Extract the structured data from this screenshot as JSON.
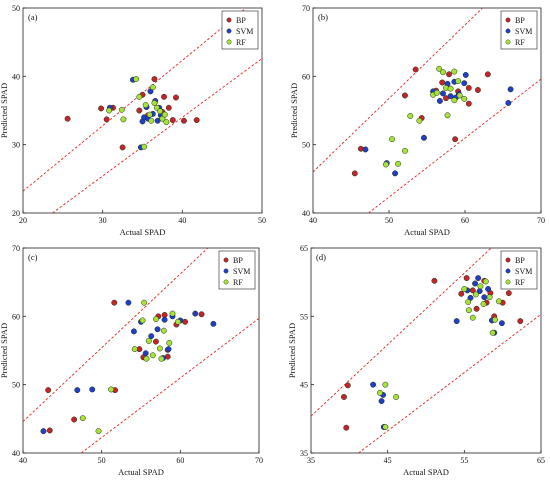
{
  "chart_data": [
    {
      "type": "scatter",
      "panel_label": "(a)",
      "xlabel": "Actual SPAD",
      "ylabel": "Predicted SPAD",
      "xlim": [
        20,
        50
      ],
      "ylim": [
        20,
        50
      ],
      "xticks": [
        20,
        30,
        40,
        50
      ],
      "yticks": [
        20,
        30,
        40,
        50
      ],
      "bands": [
        [
          20,
          23.2,
          50,
          51.9
        ],
        [
          23.7,
          20,
          50,
          42.6
        ]
      ],
      "legend": {
        "position": "top-right",
        "entries": [
          "BP",
          "SVM",
          "RF"
        ]
      },
      "series": [
        {
          "name": "BP",
          "color": "#c0262c",
          "points": [
            [
              25.6,
              33.8
            ],
            [
              29.8,
              35.3
            ],
            [
              30.5,
              33.7
            ],
            [
              31.3,
              35.4
            ],
            [
              32.5,
              29.6
            ],
            [
              34.6,
              35.0
            ],
            [
              35.0,
              37.3
            ],
            [
              35.7,
              34.3
            ],
            [
              36.5,
              39.6
            ],
            [
              37.5,
              34.8
            ],
            [
              37.7,
              37.0
            ],
            [
              38.3,
              35.4
            ],
            [
              38.8,
              33.6
            ],
            [
              39.2,
              36.9
            ],
            [
              40.2,
              33.5
            ],
            [
              41.8,
              33.6
            ]
          ]
        },
        {
          "name": "SVM",
          "color": "#1f3fc9",
          "points": [
            [
              30.9,
              35.4
            ],
            [
              33.8,
              39.5
            ],
            [
              34.8,
              29.6
            ],
            [
              35.0,
              33.4
            ],
            [
              35.2,
              34.0
            ],
            [
              35.5,
              35.5
            ],
            [
              35.7,
              33.8
            ],
            [
              36.0,
              37.8
            ],
            [
              36.3,
              34.5
            ],
            [
              36.6,
              36.4
            ],
            [
              37.1,
              35.4
            ],
            [
              36.9,
              33.5
            ],
            [
              37.3,
              34.3
            ]
          ]
        },
        {
          "name": "RF",
          "color": "#a6e33a",
          "points": [
            [
              30.8,
              35.0
            ],
            [
              32.4,
              35.1
            ],
            [
              32.6,
              33.7
            ],
            [
              34.2,
              39.6
            ],
            [
              34.6,
              37.0
            ],
            [
              35.2,
              29.7
            ],
            [
              35.4,
              35.8
            ],
            [
              35.9,
              34.4
            ],
            [
              36.3,
              38.4
            ],
            [
              36.5,
              36.1
            ],
            [
              36.8,
              35.4
            ],
            [
              37.2,
              34.9
            ],
            [
              37.5,
              33.8
            ],
            [
              37.8,
              34.4
            ],
            [
              38.0,
              33.3
            ],
            [
              36.1,
              33.5
            ]
          ]
        }
      ]
    },
    {
      "type": "scatter",
      "panel_label": "(b)",
      "xlabel": "Actual SPAD",
      "ylabel": "Predicted SPAD",
      "xlim": [
        40,
        70
      ],
      "ylim": [
        40,
        70
      ],
      "xticks": [
        40,
        50,
        60,
        70
      ],
      "yticks": [
        40,
        50,
        60,
        70
      ],
      "bands": [
        [
          40,
          46.0,
          62.3,
          70
        ],
        [
          47.3,
          40,
          70,
          59.6
        ]
      ],
      "legend": {
        "position": "top-right",
        "entries": [
          "BP",
          "SVM",
          "RF"
        ]
      },
      "series": [
        {
          "name": "BP",
          "color": "#c0262c",
          "points": [
            [
              45.5,
              45.8
            ],
            [
              46.3,
              49.4
            ],
            [
              52.1,
              57.2
            ],
            [
              53.5,
              61.0
            ],
            [
              54.3,
              53.9
            ],
            [
              56.2,
              57.9
            ],
            [
              57.0,
              59.1
            ],
            [
              57.9,
              60.3
            ],
            [
              58.7,
              50.8
            ],
            [
              59.1,
              57.8
            ],
            [
              60.5,
              58.3
            ],
            [
              60.5,
              56.0
            ],
            [
              61.7,
              58.0
            ],
            [
              63.0,
              60.3
            ],
            [
              57.5,
              56.8
            ]
          ]
        },
        {
          "name": "SVM",
          "color": "#1f3fc9",
          "points": [
            [
              46.9,
              49.3
            ],
            [
              49.7,
              47.3
            ],
            [
              50.8,
              45.8
            ],
            [
              54.6,
              51.0
            ],
            [
              55.8,
              57.8
            ],
            [
              56.7,
              56.4
            ],
            [
              57.1,
              57.5
            ],
            [
              57.7,
              58.9
            ],
            [
              58.1,
              57.1
            ],
            [
              58.6,
              59.2
            ],
            [
              59.2,
              57.4
            ],
            [
              59.9,
              59.0
            ],
            [
              60.1,
              60.2
            ],
            [
              66.0,
              58.1
            ],
            [
              65.7,
              56.1
            ],
            [
              58.8,
              56.9
            ]
          ]
        },
        {
          "name": "RF",
          "color": "#a6e33a",
          "points": [
            [
              49.6,
              47.1
            ],
            [
              50.4,
              50.8
            ],
            [
              51.2,
              47.2
            ],
            [
              52.1,
              49.1
            ],
            [
              52.8,
              54.2
            ],
            [
              54.0,
              53.5
            ],
            [
              55.8,
              57.3
            ],
            [
              56.3,
              57.6
            ],
            [
              56.6,
              61.1
            ],
            [
              57.1,
              60.6
            ],
            [
              57.5,
              58.3
            ],
            [
              58.1,
              58.2
            ],
            [
              58.6,
              56.5
            ],
            [
              58.6,
              60.7
            ],
            [
              59.1,
              59.3
            ],
            [
              59.3,
              57.2
            ],
            [
              59.9,
              56.7
            ],
            [
              57.7,
              54.3
            ]
          ]
        }
      ]
    },
    {
      "type": "scatter",
      "panel_label": "(c)",
      "xlabel": "Actual SPAD",
      "ylabel": "Predicted SPAD",
      "xlim": [
        40,
        70
      ],
      "ylim": [
        40,
        70
      ],
      "xticks": [
        40,
        50,
        60,
        70
      ],
      "yticks": [
        40,
        50,
        60,
        70
      ],
      "bands": [
        [
          40,
          44.6,
          63.5,
          70
        ],
        [
          47.4,
          40,
          70,
          59.7
        ]
      ],
      "legend": {
        "position": "top-right",
        "entries": [
          "BP",
          "SVM",
          "RF"
        ]
      },
      "series": [
        {
          "name": "BP",
          "color": "#c0262c",
          "points": [
            [
              43.4,
              43.3
            ],
            [
              43.2,
              49.2
            ],
            [
              46.5,
              44.9
            ],
            [
              51.7,
              49.2
            ],
            [
              51.6,
              62.0
            ],
            [
              54.8,
              55.2
            ],
            [
              55.3,
              54.0
            ],
            [
              56.9,
              56.3
            ],
            [
              57.2,
              60.0
            ],
            [
              58.0,
              60.2
            ],
            [
              58.4,
              55.1
            ],
            [
              59.5,
              58.8
            ],
            [
              60.6,
              59.2
            ],
            [
              62.7,
              60.3
            ],
            [
              58.4,
              54.1
            ]
          ]
        },
        {
          "name": "SVM",
          "color": "#1f3fc9",
          "points": [
            [
              42.6,
              43.2
            ],
            [
              46.9,
              49.2
            ],
            [
              48.8,
              49.3
            ],
            [
              53.4,
              62.0
            ],
            [
              54.1,
              57.8
            ],
            [
              55.0,
              59.2
            ],
            [
              55.6,
              54.6
            ],
            [
              56.3,
              57.1
            ],
            [
              57.1,
              58.1
            ],
            [
              58.0,
              59.5
            ],
            [
              58.5,
              55.2
            ],
            [
              59.0,
              60.0
            ],
            [
              60.0,
              59.4
            ],
            [
              61.9,
              60.4
            ],
            [
              64.2,
              58.9
            ],
            [
              57.8,
              53.9
            ]
          ]
        },
        {
          "name": "RF",
          "color": "#a6e33a",
          "points": [
            [
              47.6,
              45.1
            ],
            [
              49.6,
              43.2
            ],
            [
              51.2,
              49.3
            ],
            [
              54.2,
              55.2
            ],
            [
              55.2,
              59.4
            ],
            [
              55.4,
              62.0
            ],
            [
              56.0,
              56.4
            ],
            [
              56.5,
              54.3
            ],
            [
              56.9,
              59.6
            ],
            [
              57.4,
              55.3
            ],
            [
              57.9,
              57.9
            ],
            [
              58.6,
              56.1
            ],
            [
              59.0,
              60.4
            ],
            [
              59.7,
              59.2
            ],
            [
              55.7,
              53.8
            ],
            [
              57.6,
              53.8
            ]
          ]
        }
      ]
    },
    {
      "type": "scatter",
      "panel_label": "(d)",
      "xlabel": "Actual SPAD",
      "ylabel": "Predicted SPAD",
      "xlim": [
        35,
        65
      ],
      "ylim": [
        35,
        65
      ],
      "xticks": [
        35,
        45,
        55,
        65
      ],
      "yticks": [
        35,
        45,
        55,
        65
      ],
      "bands": [
        [
          35,
          40.4,
          58.5,
          65
        ],
        [
          41.2,
          35,
          65,
          55.3
        ]
      ],
      "legend": {
        "position": "top-right",
        "entries": [
          "BP",
          "SVM",
          "RF"
        ]
      },
      "series": [
        {
          "name": "BP",
          "color": "#c0262c",
          "points": [
            [
              39.3,
              43.2
            ],
            [
              39.6,
              38.7
            ],
            [
              39.8,
              44.9
            ],
            [
              51.1,
              60.2
            ],
            [
              54.6,
              58.3
            ],
            [
              55.3,
              60.6
            ],
            [
              56.1,
              58.8
            ],
            [
              56.6,
              56.1
            ],
            [
              57.6,
              60.2
            ],
            [
              57.9,
              57.0
            ],
            [
              58.4,
              58.4
            ],
            [
              58.9,
              55.0
            ],
            [
              60.0,
              57.0
            ],
            [
              60.8,
              58.4
            ],
            [
              61.3,
              59.7
            ],
            [
              62.3,
              54.3
            ]
          ]
        },
        {
          "name": "SVM",
          "color": "#1f3fc9",
          "points": [
            [
              43.1,
              45.0
            ],
            [
              44.2,
              42.6
            ],
            [
              44.4,
              43.5
            ],
            [
              44.5,
              38.8
            ],
            [
              54.0,
              54.3
            ],
            [
              55.4,
              58.8
            ],
            [
              55.8,
              57.7
            ],
            [
              56.4,
              59.8
            ],
            [
              56.8,
              60.6
            ],
            [
              57.0,
              58.7
            ],
            [
              57.6,
              57.8
            ],
            [
              58.1,
              59.0
            ],
            [
              58.6,
              54.4
            ],
            [
              58.9,
              52.6
            ],
            [
              59.9,
              54.0
            ]
          ]
        },
        {
          "name": "RF",
          "color": "#a6e33a",
          "points": [
            [
              44.0,
              43.8
            ],
            [
              44.7,
              45.0
            ],
            [
              44.7,
              38.8
            ],
            [
              46.1,
              43.2
            ],
            [
              55.0,
              59.0
            ],
            [
              55.5,
              57.1
            ],
            [
              55.6,
              55.9
            ],
            [
              56.1,
              54.8
            ],
            [
              56.5,
              58.2
            ],
            [
              57.1,
              59.4
            ],
            [
              57.5,
              56.8
            ],
            [
              57.8,
              60.1
            ],
            [
              58.3,
              57.8
            ],
            [
              59.0,
              54.5
            ],
            [
              59.5,
              57.2
            ],
            [
              58.7,
              52.6
            ]
          ]
        }
      ]
    }
  ]
}
